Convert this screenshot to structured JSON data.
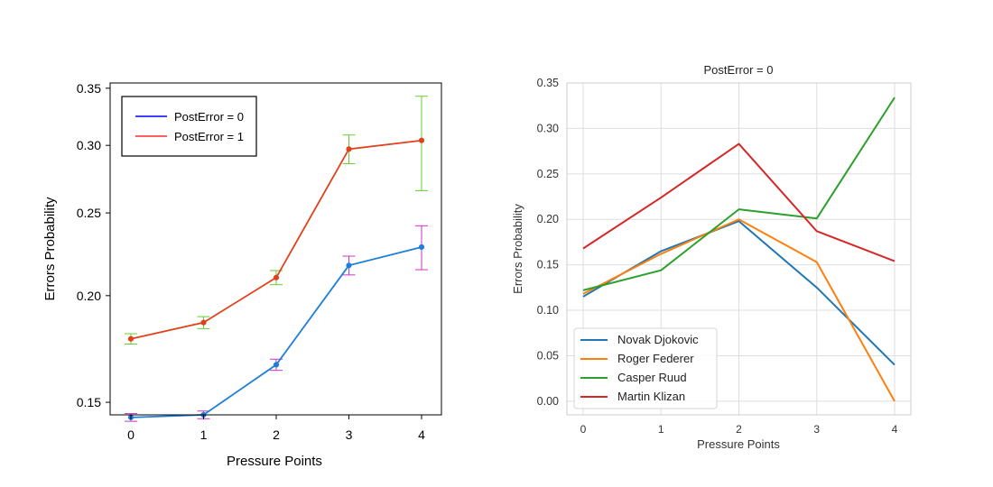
{
  "chart_data": [
    {
      "type": "line",
      "title": "",
      "xlabel": "Pressure Points",
      "ylabel": "Errors Probability",
      "x": [
        0,
        1,
        2,
        3,
        4
      ],
      "xticks": [
        "0",
        "1",
        "2",
        "3",
        "4"
      ],
      "yticks": [
        "0.15",
        "0.20",
        "0.25",
        "0.30",
        "0.35"
      ],
      "yscale": "log",
      "ylim": [
        0.145,
        0.355
      ],
      "grid": false,
      "legend": "top-left",
      "series": [
        {
          "name": "PostError = 0",
          "legend_color": "#0000ff",
          "line_color": "#1e7fd8",
          "errorbar_color": "#cc33cc",
          "values": [
            0.144,
            0.145,
            0.166,
            0.217,
            0.228
          ],
          "error": [
            0.0015,
            0.0015,
            0.0025,
            0.0055,
            0.0135
          ]
        },
        {
          "name": "PostError = 1",
          "legend_color": "#ff2a2a",
          "line_color": "#e0411b",
          "errorbar_color": "#66cc33",
          "values": [
            0.178,
            0.186,
            0.21,
            0.297,
            0.304
          ],
          "error": [
            0.0025,
            0.003,
            0.004,
            0.0115,
            0.0385
          ]
        }
      ]
    },
    {
      "type": "line",
      "title": "PostError = 0",
      "xlabel": "Pressure Points",
      "ylabel": "Errors Probability",
      "x": [
        0,
        1,
        2,
        3,
        4
      ],
      "xticks": [
        "0",
        "1",
        "2",
        "3",
        "4"
      ],
      "yticks": [
        "0.00",
        "0.05",
        "0.10",
        "0.15",
        "0.20",
        "0.25",
        "0.30",
        "0.35"
      ],
      "ylim": [
        -0.015,
        0.35
      ],
      "grid": true,
      "legend": "bottom-left",
      "series": [
        {
          "name": "Novak Djokovic",
          "color": "#1f77b4",
          "values": [
            0.115,
            0.165,
            0.198,
            0.125,
            0.04
          ]
        },
        {
          "name": "Roger Federer",
          "color": "#ff7f0e",
          "values": [
            0.118,
            0.162,
            0.2,
            0.153,
            0.0
          ]
        },
        {
          "name": "Casper Ruud",
          "color": "#2ca02c",
          "values": [
            0.122,
            0.144,
            0.211,
            0.201,
            0.334
          ]
        },
        {
          "name": "Martin Klizan",
          "color": "#d62728",
          "values": [
            0.168,
            0.224,
            0.283,
            0.187,
            0.154
          ]
        }
      ]
    }
  ]
}
